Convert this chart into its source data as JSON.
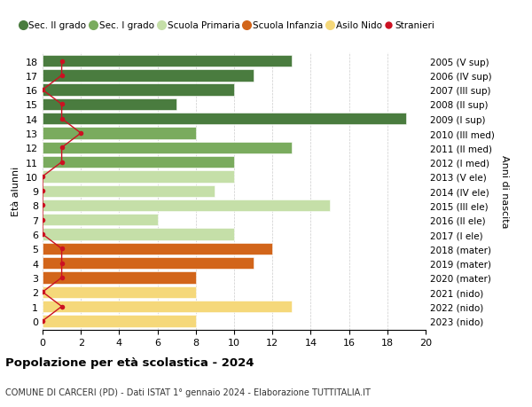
{
  "ages": [
    18,
    17,
    16,
    15,
    14,
    13,
    12,
    11,
    10,
    9,
    8,
    7,
    6,
    5,
    4,
    3,
    2,
    1,
    0
  ],
  "right_labels": [
    "2005 (V sup)",
    "2006 (IV sup)",
    "2007 (III sup)",
    "2008 (II sup)",
    "2009 (I sup)",
    "2010 (III med)",
    "2011 (II med)",
    "2012 (I med)",
    "2013 (V ele)",
    "2014 (IV ele)",
    "2015 (III ele)",
    "2016 (II ele)",
    "2017 (I ele)",
    "2018 (mater)",
    "2019 (mater)",
    "2020 (mater)",
    "2021 (nido)",
    "2022 (nido)",
    "2023 (nido)"
  ],
  "bar_values": [
    13,
    11,
    10,
    7,
    19,
    8,
    13,
    10,
    10,
    9,
    15,
    6,
    10,
    12,
    11,
    8,
    8,
    13,
    8
  ],
  "bar_colors": [
    "#4a7c3f",
    "#4a7c3f",
    "#4a7c3f",
    "#4a7c3f",
    "#4a7c3f",
    "#7aab5e",
    "#7aab5e",
    "#7aab5e",
    "#c5dfa8",
    "#c5dfa8",
    "#c5dfa8",
    "#c5dfa8",
    "#c5dfa8",
    "#d2651a",
    "#d2651a",
    "#d2651a",
    "#f5d87a",
    "#f5d87a",
    "#f5d87a"
  ],
  "stranieri_values": [
    1,
    1,
    0,
    1,
    1,
    2,
    1,
    1,
    0,
    0,
    0,
    0,
    0,
    1,
    1,
    1,
    0,
    1,
    0
  ],
  "stranieri_color": "#cc1122",
  "title": "Popolazione per età scolastica - 2024",
  "subtitle": "COMUNE DI CARCERI (PD) - Dati ISTAT 1° gennaio 2024 - Elaborazione TUTTITALIA.IT",
  "ylabel_left": "Età alunni",
  "ylabel_right": "Anni di nascita",
  "xlim": [
    0,
    20
  ],
  "xticks": [
    0,
    2,
    4,
    6,
    8,
    10,
    12,
    14,
    16,
    18,
    20
  ],
  "legend_items": [
    {
      "label": "Sec. II grado",
      "color": "#4a7c3f"
    },
    {
      "label": "Sec. I grado",
      "color": "#7aab5e"
    },
    {
      "label": "Scuola Primaria",
      "color": "#c5dfa8"
    },
    {
      "label": "Scuola Infanzia",
      "color": "#d2651a"
    },
    {
      "label": "Asilo Nido",
      "color": "#f5d87a"
    },
    {
      "label": "Stranieri",
      "color": "#cc1122"
    }
  ],
  "background_color": "#ffffff",
  "grid_color": "#cccccc",
  "bar_height": 0.82
}
